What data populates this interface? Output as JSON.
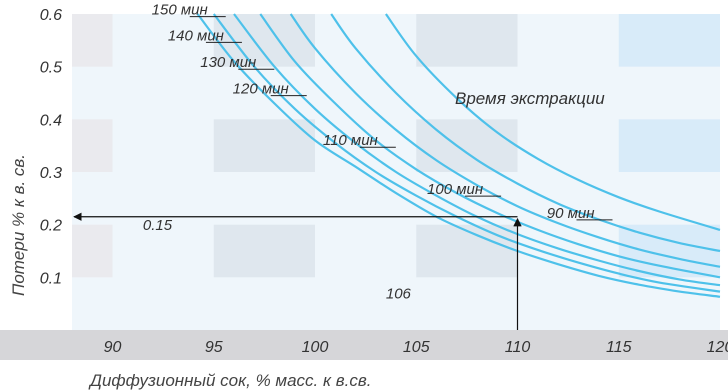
{
  "chart_data": {
    "type": "line",
    "title": "",
    "legend_title": "Время экстракции",
    "xlabel": "Диффузионный сок, % масс. к в.св.",
    "ylabel": "Потери % к в. св.",
    "xlim": [
      88,
      120
    ],
    "ylim": [
      0,
      0.6
    ],
    "x_ticks": [
      "90",
      "95",
      "100",
      "105",
      "110",
      "115",
      "120"
    ],
    "y_ticks": [
      "0.1",
      "0.2",
      "0.3",
      "0.4",
      "0.5",
      "0.6"
    ],
    "grid": true,
    "series": [
      {
        "name": "150 мин",
        "x": [
          94.2,
          96,
          98,
          100,
          102,
          104,
          106,
          108,
          110,
          112,
          114,
          116,
          118,
          120
        ],
        "y": [
          0.6,
          0.51,
          0.43,
          0.36,
          0.31,
          0.26,
          0.215,
          0.18,
          0.15,
          0.125,
          0.103,
          0.086,
          0.073,
          0.063
        ]
      },
      {
        "name": "140 мин",
        "x": [
          95.0,
          97,
          99,
          101,
          103,
          105,
          107,
          109,
          111,
          113,
          115,
          117,
          120
        ],
        "y": [
          0.6,
          0.5,
          0.42,
          0.355,
          0.3,
          0.255,
          0.215,
          0.18,
          0.152,
          0.128,
          0.107,
          0.09,
          0.073
        ]
      },
      {
        "name": "130 мин",
        "x": [
          96.0,
          98,
          100,
          102,
          104,
          106,
          108,
          110,
          112,
          114,
          116,
          118,
          120
        ],
        "y": [
          0.6,
          0.5,
          0.42,
          0.355,
          0.3,
          0.255,
          0.215,
          0.182,
          0.155,
          0.132,
          0.112,
          0.096,
          0.085
        ]
      },
      {
        "name": "120 мин",
        "x": [
          97.3,
          99,
          101,
          103,
          105,
          107,
          109,
          111,
          113,
          115,
          117,
          120
        ],
        "y": [
          0.6,
          0.51,
          0.43,
          0.36,
          0.305,
          0.26,
          0.222,
          0.19,
          0.163,
          0.14,
          0.122,
          0.1
        ]
      },
      {
        "name": "110 мин",
        "x": [
          98.8,
          100,
          102,
          104,
          106,
          108,
          110,
          112,
          114,
          116,
          118,
          120
        ],
        "y": [
          0.6,
          0.535,
          0.45,
          0.38,
          0.322,
          0.275,
          0.235,
          0.203,
          0.176,
          0.153,
          0.135,
          0.12
        ]
      },
      {
        "name": "100 мин",
        "x": [
          100.8,
          102,
          104,
          106,
          108,
          110,
          112,
          114,
          116,
          118,
          120
        ],
        "y": [
          0.6,
          0.535,
          0.45,
          0.38,
          0.323,
          0.278,
          0.24,
          0.21,
          0.185,
          0.165,
          0.15
        ]
      },
      {
        "name": "90 мин",
        "x": [
          103.5,
          105,
          107,
          109,
          111,
          113,
          115,
          117,
          120
        ],
        "y": [
          0.6,
          0.52,
          0.44,
          0.375,
          0.325,
          0.285,
          0.252,
          0.225,
          0.19
        ]
      }
    ],
    "curve_labels": [
      {
        "text": "150 мин",
        "at": [
          94.9,
          0.597
        ]
      },
      {
        "text": "140 мин",
        "at": [
          95.7,
          0.548
        ]
      },
      {
        "text": "130 мин",
        "at": [
          97.3,
          0.497
        ]
      },
      {
        "text": "120 мин",
        "at": [
          98.9,
          0.447
        ]
      },
      {
        "text": "110 мин",
        "at": [
          103.3,
          0.349
        ]
      },
      {
        "text": "100 мин",
        "at": [
          108.5,
          0.256
        ]
      },
      {
        "text": "90 мин",
        "at": [
          114.0,
          0.211
        ]
      }
    ],
    "annotations": [
      {
        "text": "0.15",
        "at": [
          91.5,
          0.19
        ]
      },
      {
        "text": "106",
        "at": [
          103.5,
          0.06
        ]
      }
    ],
    "guide_lines": {
      "vertical_x": 110,
      "y_level": 0.215,
      "arrow_to_x": 88
    }
  },
  "colors": {
    "background": "#ffffff",
    "plot_bg": "#eff6fb",
    "band_cell_alt": "#f5f5f7",
    "grey_block": "#e9e9ec",
    "mid_block": "#dde6ec",
    "blue_block": "#d5eaf8",
    "curve": "#4ec1ea",
    "axis_band": "#d6d6d9",
    "guide": "#111111"
  }
}
